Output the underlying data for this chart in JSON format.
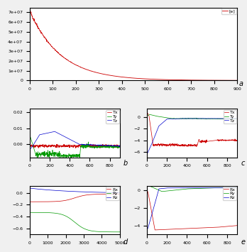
{
  "top_plot": {
    "label": "[e]",
    "color": "#cc0000",
    "xlim": [
      0,
      900
    ],
    "ylim": [
      0,
      75000000.0
    ],
    "panel_label": "a"
  },
  "panel_b": {
    "ylim": [
      -0.008,
      0.022
    ],
    "xlim": [
      0,
      900
    ],
    "colors": [
      "#cc0000",
      "#009900",
      "#0000cc"
    ],
    "labels": [
      "Tx",
      "Ty",
      "Tz"
    ],
    "panel_label": "b"
  },
  "panel_c": {
    "ylim": [
      -7,
      1.5
    ],
    "xlim": [
      0,
      900
    ],
    "colors": [
      "#cc0000",
      "#009900",
      "#0000cc"
    ],
    "labels": [
      "Tx",
      "Ty",
      "Tz"
    ],
    "panel_label": "c"
  },
  "panel_d": {
    "ylim": [
      -0.7,
      0.12
    ],
    "xlim": [
      0,
      5000
    ],
    "colors": [
      "#cc0000",
      "#009900",
      "#0000cc"
    ],
    "labels": [
      "Rx",
      "Ry",
      "Rz"
    ],
    "panel_label": "d"
  },
  "panel_e": {
    "ylim": [
      -5.0,
      0.5
    ],
    "xlim": [
      0,
      900
    ],
    "colors": [
      "#cc0000",
      "#009900",
      "#0000cc"
    ],
    "labels": [
      "Rx",
      "Ry",
      "Rz"
    ],
    "panel_label": "e"
  },
  "background": "#f0f0f0",
  "font_size": 4.5
}
